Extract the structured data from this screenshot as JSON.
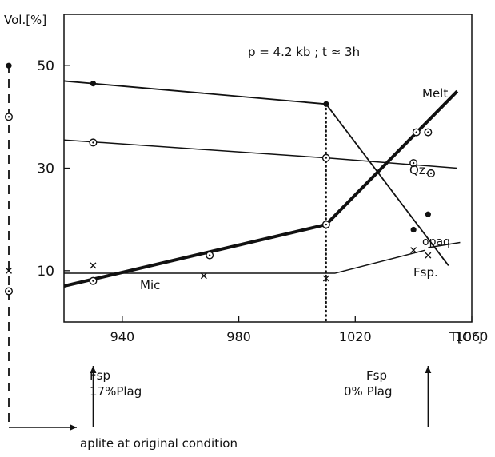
{
  "chart_data": {
    "type": "line",
    "title": "p = 4.2 kb ;  t ≈ 3h",
    "ylabel": "Vol.[%]",
    "xlabel": "T[C°]",
    "xlim": [
      920,
      1060
    ],
    "ylim": [
      0,
      60
    ],
    "xticks": [
      940,
      980,
      1020,
      1060
    ],
    "yticks": [
      10,
      30,
      50
    ],
    "grid": false,
    "series": [
      {
        "name": "Melt",
        "style": "thick",
        "line": [
          [
            920,
            7
          ],
          [
            1010,
            19
          ],
          [
            1055,
            45
          ]
        ],
        "points": [
          [
            930,
            8
          ],
          [
            970,
            13
          ],
          [
            1010,
            19
          ],
          [
            1041,
            37
          ],
          [
            1045,
            37
          ]
        ],
        "marker": "dotted-circle"
      },
      {
        "name": "Qz.",
        "style": "thin",
        "line": [
          [
            920,
            35.5
          ],
          [
            1010,
            32
          ],
          [
            1055,
            30
          ]
        ],
        "points": [
          [
            930,
            35
          ],
          [
            1010,
            32
          ],
          [
            1040,
            31
          ],
          [
            1046,
            29
          ]
        ],
        "marker": "dotted-circle"
      },
      {
        "name": "Fsp.",
        "style": "medium",
        "line": [
          [
            920,
            47
          ],
          [
            1010,
            42.5
          ],
          [
            1052,
            11
          ]
        ],
        "points": [
          [
            930,
            46.5
          ],
          [
            1010,
            42.5
          ],
          [
            1040,
            18
          ],
          [
            1045,
            21
          ]
        ],
        "marker": "filled-circle"
      },
      {
        "name": "opaq",
        "style": "thin",
        "line": [
          [
            1045,
            14.5
          ],
          [
            1056,
            15.5
          ]
        ],
        "points": [],
        "marker": "none"
      },
      {
        "name": "Mic",
        "style": "thin",
        "line": [
          [
            920,
            9.5
          ],
          [
            1013,
            9.5
          ],
          [
            1044,
            14
          ]
        ],
        "points": [
          [
            930,
            11
          ],
          [
            968,
            9
          ],
          [
            1010,
            8.5
          ],
          [
            1040,
            14
          ],
          [
            1045,
            13
          ]
        ],
        "marker": "cross"
      }
    ],
    "vline": {
      "x": 1010,
      "style": "dotted"
    },
    "initial_composition": {
      "label": "aplite at original condition",
      "points": [
        {
          "y": 50,
          "marker": "filled-circle"
        },
        {
          "y": 40,
          "marker": "dotted-circle"
        },
        {
          "y": 10,
          "marker": "cross"
        },
        {
          "y": 6,
          "marker": "dotted-circle"
        }
      ]
    },
    "annotations": [
      {
        "x": 930,
        "line1": "Fsp",
        "line2": "17%Plag"
      },
      {
        "x": 1045,
        "line1": "Fsp",
        "line2": "0% Plag"
      }
    ]
  }
}
